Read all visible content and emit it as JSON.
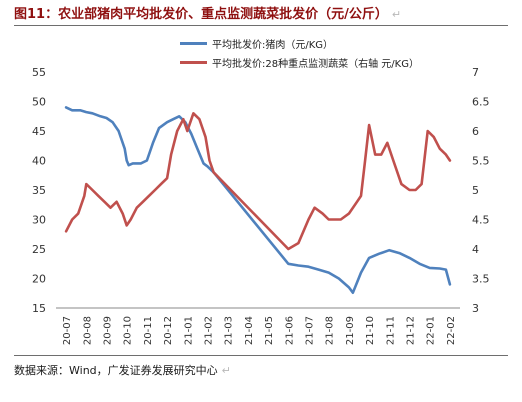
{
  "header": {
    "title": "图11：农业部猪肉平均批发价、重点监测蔬菜批发价（元/公斤）",
    "return_mark": "↵"
  },
  "footer": {
    "source": "数据来源：Wind，广发证券发展研究中心"
  },
  "chart_data": {
    "type": "line",
    "categories": [
      "20-07",
      "20-08",
      "20-09",
      "20-10",
      "20-11",
      "20-12",
      "21-01",
      "21-02",
      "21-03",
      "21-04",
      "21-05",
      "21-06",
      "21-07",
      "21-08",
      "21-09",
      "21-10",
      "21-11",
      "21-12",
      "22-01",
      "22-02"
    ],
    "y_left": {
      "ylim": [
        15,
        55
      ],
      "ticks": [
        15,
        20,
        25,
        30,
        35,
        40,
        45,
        50,
        55
      ]
    },
    "y_right": {
      "ylim": [
        3,
        7
      ],
      "ticks": [
        3,
        3.5,
        4,
        4.5,
        5,
        5.5,
        6,
        6.5,
        7
      ]
    },
    "grid": false,
    "legend_position": "top-center",
    "series": [
      {
        "name": "平均批发价:猪肉（元/KG）",
        "axis": "left",
        "color": "#4f81bd",
        "x": [
          0,
          0.3,
          0.7,
          1.0,
          1.3,
          1.7,
          2.0,
          2.3,
          2.6,
          2.9,
          3.0,
          3.1,
          3.3,
          3.7,
          4.0,
          4.3,
          4.6,
          5.0,
          5.3,
          5.6,
          5.9,
          6.2,
          6.5,
          6.8,
          7.0,
          7.3,
          11.0,
          11.5,
          12.0,
          12.5,
          13.0,
          13.5,
          14.0,
          14.2,
          14.6,
          15.0,
          15.5,
          16.0,
          16.5,
          17.0,
          17.5,
          18.0,
          18.5,
          18.8,
          19.0
        ],
        "values": [
          49,
          48.5,
          48.5,
          48.2,
          48.0,
          47.5,
          47.2,
          46.5,
          45.0,
          42.0,
          40.0,
          39.2,
          39.5,
          39.5,
          40.0,
          43.0,
          45.5,
          46.5,
          47.0,
          47.5,
          46.5,
          44.5,
          42.0,
          39.5,
          39.0,
          38.0,
          22.5,
          22.2,
          22.0,
          21.5,
          21.0,
          20.0,
          18.5,
          17.6,
          21.0,
          23.5,
          24.2,
          24.8,
          24.3,
          23.5,
          22.5,
          21.8,
          21.7,
          21.5,
          19.0
        ]
      },
      {
        "name": "平均批发价:28种重点监测蔬菜（右轴 元/KG）",
        "axis": "right",
        "color": "#c0504d",
        "x": [
          0,
          0.3,
          0.6,
          0.9,
          1.0,
          1.3,
          1.6,
          1.9,
          2.2,
          2.5,
          2.8,
          3.0,
          3.2,
          3.5,
          3.8,
          4.1,
          4.4,
          4.7,
          5.0,
          5.2,
          5.5,
          5.8,
          6.0,
          6.3,
          6.6,
          6.9,
          7.1,
          7.3,
          11.0,
          11.5,
          12.0,
          12.3,
          12.7,
          13.0,
          13.3,
          13.6,
          14.0,
          14.4,
          14.6,
          14.8,
          15.0,
          15.3,
          15.6,
          15.9,
          16.2,
          16.6,
          17.0,
          17.3,
          17.6,
          17.9,
          18.2,
          18.5,
          18.8,
          19.0
        ],
        "values": [
          4.3,
          4.5,
          4.6,
          4.9,
          5.1,
          5.0,
          4.9,
          4.8,
          4.7,
          4.8,
          4.6,
          4.4,
          4.5,
          4.7,
          4.8,
          4.9,
          5.0,
          5.1,
          5.2,
          5.6,
          6.0,
          6.2,
          6.0,
          6.3,
          6.2,
          5.9,
          5.5,
          5.3,
          4.0,
          4.1,
          4.5,
          4.7,
          4.6,
          4.5,
          4.5,
          4.5,
          4.6,
          4.8,
          4.9,
          5.5,
          6.1,
          5.6,
          5.6,
          5.8,
          5.5,
          5.1,
          5.0,
          5.0,
          5.1,
          6.0,
          5.9,
          5.7,
          5.6,
          5.5
        ]
      }
    ]
  }
}
